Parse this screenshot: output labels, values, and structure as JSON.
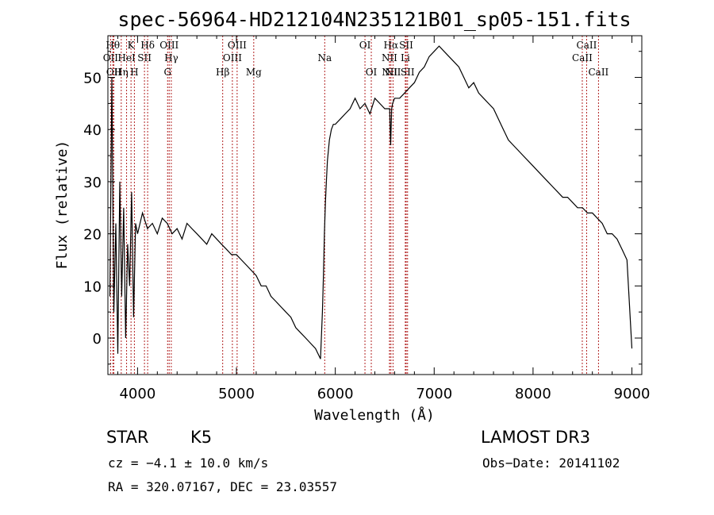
{
  "chart_data": {
    "type": "line",
    "title": "spec-56964-HD212104N235121B01_sp05-151.fits",
    "xlabel": "Wavelength (Å)",
    "ylabel": "Flux (relative)",
    "xlim": [
      3700,
      9100
    ],
    "ylim": [
      -7,
      58
    ],
    "xticks": [
      4000,
      5000,
      6000,
      7000,
      8000,
      9000
    ],
    "yticks": [
      0,
      10,
      20,
      30,
      40,
      50
    ],
    "grid": false,
    "series": [
      {
        "name": "flux",
        "x": [
          3720,
          3740,
          3760,
          3780,
          3800,
          3820,
          3840,
          3860,
          3880,
          3900,
          3920,
          3940,
          3960,
          3980,
          4000,
          4050,
          4100,
          4150,
          4200,
          4250,
          4300,
          4350,
          4400,
          4450,
          4500,
          4550,
          4600,
          4650,
          4700,
          4750,
          4800,
          4850,
          4900,
          4950,
          5000,
          5050,
          5100,
          5150,
          5200,
          5250,
          5300,
          5350,
          5400,
          5450,
          5500,
          5550,
          5600,
          5650,
          5700,
          5750,
          5800,
          5850,
          5870,
          5880,
          5890,
          5900,
          5910,
          5920,
          5940,
          5960,
          5980,
          6000,
          6050,
          6100,
          6150,
          6200,
          6250,
          6300,
          6350,
          6400,
          6450,
          6500,
          6550,
          6560,
          6570,
          6580,
          6600,
          6650,
          6700,
          6750,
          6800,
          6850,
          6900,
          6950,
          7000,
          7050,
          7100,
          7150,
          7200,
          7250,
          7300,
          7350,
          7400,
          7450,
          7500,
          7550,
          7600,
          7650,
          7700,
          7750,
          7800,
          7850,
          7900,
          7950,
          8000,
          8050,
          8100,
          8150,
          8200,
          8250,
          8300,
          8350,
          8400,
          8450,
          8500,
          8550,
          8600,
          8650,
          8700,
          8750,
          8800,
          8850,
          8900,
          8950,
          9000
        ],
        "values": [
          8,
          50,
          5,
          22,
          -3,
          30,
          8,
          25,
          0,
          18,
          10,
          28,
          4,
          22,
          20,
          24,
          21,
          22,
          20,
          23,
          22,
          20,
          21,
          19,
          22,
          21,
          20,
          19,
          18,
          20,
          19,
          18,
          17,
          16,
          16,
          15,
          14,
          13,
          12,
          10,
          10,
          8,
          7,
          6,
          5,
          4,
          2,
          1,
          0,
          -1,
          -2,
          -4,
          5,
          12,
          20,
          26,
          30,
          34,
          38,
          40,
          41,
          41,
          42,
          43,
          44,
          46,
          44,
          45,
          43,
          46,
          45,
          44,
          44,
          37,
          44,
          45,
          46,
          46,
          47,
          48,
          49,
          51,
          52,
          54,
          55,
          56,
          55,
          54,
          53,
          52,
          50,
          48,
          49,
          47,
          46,
          45,
          44,
          42,
          40,
          38,
          37,
          36,
          35,
          34,
          33,
          32,
          31,
          30,
          29,
          28,
          27,
          27,
          26,
          25,
          25,
          24,
          24,
          23,
          22,
          20,
          20,
          19,
          17,
          15,
          -2
        ]
      }
    ],
    "spectral_lines": [
      {
        "label": "OII",
        "wavelength": 3727,
        "row": 2
      },
      {
        "label": "Hθ",
        "wavelength": 3750,
        "row": 1
      },
      {
        "label": "OII",
        "wavelength": 3760,
        "row": 3
      },
      {
        "label": "Hη",
        "wavelength": 3835,
        "row": 3
      },
      {
        "label": "HeI",
        "wavelength": 3889,
        "row": 2
      },
      {
        "label": "K",
        "wavelength": 3934,
        "row": 1
      },
      {
        "label": "H",
        "wavelength": 3968,
        "row": 3
      },
      {
        "label": "SII",
        "wavelength": 4070,
        "row": 2
      },
      {
        "label": "Hδ",
        "wavelength": 4102,
        "row": 1
      },
      {
        "label": "OIII",
        "wavelength": 4320,
        "row": 1
      },
      {
        "label": "Hγ",
        "wavelength": 4341,
        "row": 2
      },
      {
        "label": "G",
        "wavelength": 4304,
        "row": 3
      },
      {
        "label": "Hβ",
        "wavelength": 4861,
        "row": 3
      },
      {
        "label": "OIII",
        "wavelength": 4959,
        "row": 2
      },
      {
        "label": "OIII",
        "wavelength": 5007,
        "row": 1
      },
      {
        "label": "Mg",
        "wavelength": 5175,
        "row": 3
      },
      {
        "label": "Na",
        "wavelength": 5893,
        "row": 2
      },
      {
        "label": "OI",
        "wavelength": 6300,
        "row": 1
      },
      {
        "label": "OI",
        "wavelength": 6364,
        "row": 3
      },
      {
        "label": "NII",
        "wavelength": 6548,
        "row": 2
      },
      {
        "label": "NII",
        "wavelength": 6550,
        "row": 3
      },
      {
        "label": "Hα",
        "wavelength": 6563,
        "row": 1
      },
      {
        "label": "NII",
        "wavelength": 6584,
        "row": 3
      },
      {
        "label": "SII",
        "wavelength": 6717,
        "row": 1
      },
      {
        "label": "Li",
        "wavelength": 6708,
        "row": 2
      },
      {
        "label": "SII",
        "wavelength": 6731,
        "row": 3
      },
      {
        "label": "CaII",
        "wavelength": 8498,
        "row": 2
      },
      {
        "label": "CaII",
        "wavelength": 8542,
        "row": 1
      },
      {
        "label": "CaII",
        "wavelength": 8662,
        "row": 3
      }
    ]
  },
  "info": {
    "object_class": "STAR",
    "subclass": "K5",
    "survey": "LAMOST DR3",
    "redshift": "cz = −4.1 ± 10.0 km/s",
    "obs_date": "Obs−Date: 20141102",
    "coords": "RA = 320.07167, DEC =  23.03557"
  },
  "colors": {
    "line_marker": "#b22222",
    "spectrum": "#000000"
  }
}
